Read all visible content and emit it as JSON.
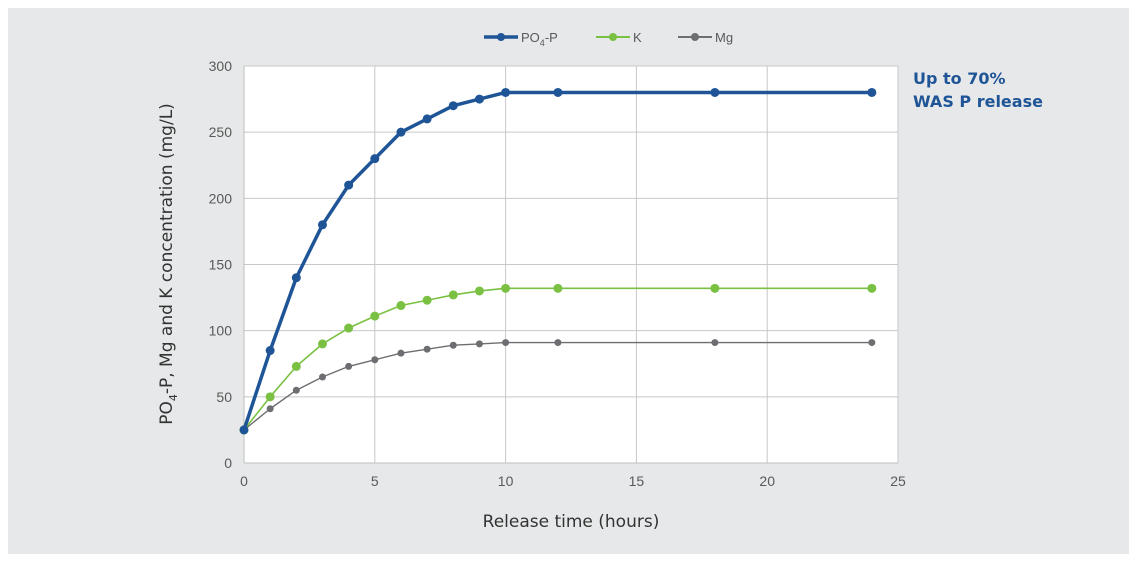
{
  "chart_data": {
    "type": "line",
    "xlabel": "Release time (hours)",
    "ylabel": {
      "pre": "PO",
      "sub": "4",
      "post": "-P, Mg and K concentration (mg/L)"
    },
    "xlim": [
      0,
      25
    ],
    "ylim": [
      0,
      300
    ],
    "xticks": [
      0,
      5,
      10,
      15,
      20,
      25
    ],
    "yticks": [
      0,
      50,
      100,
      150,
      200,
      250,
      300
    ],
    "grid": true,
    "legend_position": "top-center",
    "series": [
      {
        "name": {
          "pre": "PO",
          "sub": "4",
          "post": "-P"
        },
        "color": "#1f5597",
        "x": [
          0,
          1,
          2,
          3,
          4,
          5,
          6,
          7,
          8,
          9,
          10,
          12,
          18,
          24
        ],
        "y": [
          25,
          85,
          140,
          180,
          210,
          230,
          250,
          260,
          270,
          275,
          280,
          280,
          280,
          280
        ]
      },
      {
        "name": {
          "pre": "K",
          "sub": "",
          "post": ""
        },
        "color": "#7ac143",
        "x": [
          0,
          1,
          2,
          3,
          4,
          5,
          6,
          7,
          8,
          9,
          10,
          12,
          18,
          24
        ],
        "y": [
          25,
          50,
          73,
          90,
          102,
          111,
          119,
          123,
          127,
          130,
          132,
          132,
          132,
          132
        ]
      },
      {
        "name": {
          "pre": "Mg",
          "sub": "",
          "post": ""
        },
        "color": "#6d6e71",
        "x": [
          0,
          1,
          2,
          3,
          4,
          5,
          6,
          7,
          8,
          9,
          10,
          12,
          18,
          24
        ],
        "y": [
          25,
          41,
          55,
          65,
          73,
          78,
          83,
          86,
          89,
          90,
          91,
          91,
          91,
          91
        ]
      }
    ],
    "annotation": {
      "line1": "Up to 70%",
      "line2": "WAS P release"
    }
  }
}
